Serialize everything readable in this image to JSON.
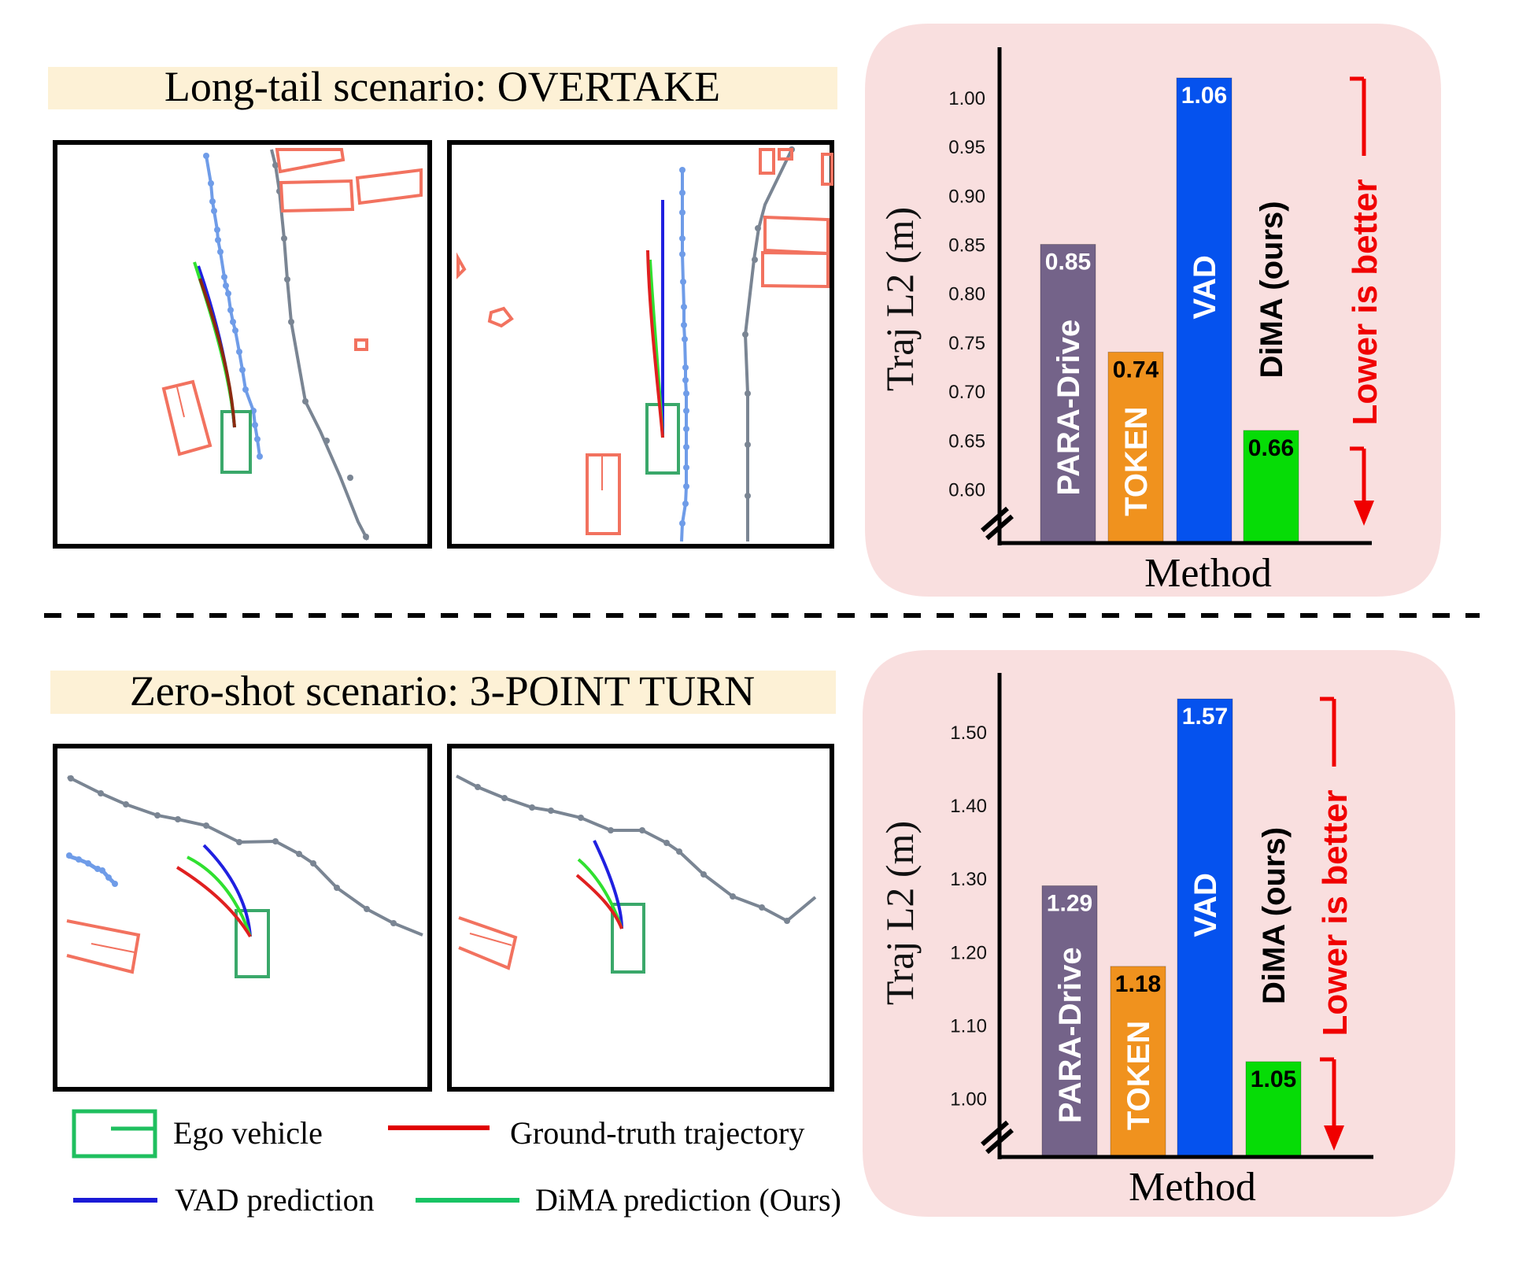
{
  "figure": {
    "scenarios": [
      {
        "title": "Long-tail scenario: OVERTAKE",
        "maps": [
          "VAD prediction view",
          "DiMA prediction view"
        ]
      },
      {
        "title": "Zero-shot scenario: 3-POINT TURN",
        "maps": [
          "VAD prediction view",
          "DiMA prediction view"
        ]
      }
    ],
    "legend": [
      {
        "label": "Ego vehicle",
        "icon": "ego-box-icon",
        "color": "#1fbf5f"
      },
      {
        "label": "Ground-truth trajectory",
        "icon": "red-line-icon",
        "color": "#e00000"
      },
      {
        "label": "VAD prediction",
        "icon": "blue-line-icon",
        "color": "#1a1ad6"
      },
      {
        "label": "DiMA prediction (Ours)",
        "icon": "green-line-icon",
        "color": "#18c464"
      }
    ],
    "colors": {
      "band_bg": "#fdf1d6",
      "chart_bg": "#f9dfdf",
      "ego": "#3aa86a",
      "gt": "#e02020",
      "vad": "#2020e0",
      "dima": "#30e030",
      "lane_blue": "#6f9ce8",
      "lane_gray": "#7a8593",
      "agent": "#f2725f",
      "better": "#f00000"
    }
  },
  "chart_data": [
    {
      "type": "bar",
      "title": "",
      "xlabel": "Method",
      "ylabel": "Traj L2 (m)",
      "categories": [
        "PARA-Drive",
        "TOKEN",
        "VAD",
        "DiMA (ours)"
      ],
      "values": [
        0.85,
        0.74,
        1.06,
        0.66
      ],
      "value_labels": [
        "0.85",
        "0.74",
        "1.06",
        "0.66"
      ],
      "bar_colors": [
        "#746389",
        "#f0921e",
        "#0552ee",
        "#06dc06"
      ],
      "name_colors": [
        "#ffffff",
        "#ffffff",
        "#ffffff",
        "#000000"
      ],
      "value_colors": [
        "#ffffff",
        "#000000",
        "#ffffff",
        "#000000"
      ],
      "yticks": [
        "0.60",
        "0.65",
        "0.70",
        "0.75",
        "0.80",
        "0.85",
        "0.90",
        "0.95",
        "1.00"
      ],
      "ytick_values": [
        0.6,
        0.65,
        0.7,
        0.75,
        0.8,
        0.85,
        0.9,
        0.95,
        1.0
      ],
      "ylim": [
        0.545,
        1.02
      ],
      "axis_break": true,
      "annotation": "Lower is better",
      "grid": false,
      "legend": "none"
    },
    {
      "type": "bar",
      "title": "",
      "xlabel": "Method",
      "ylabel": "Traj L2 (m)",
      "categories": [
        "PARA-Drive",
        "TOKEN",
        "VAD",
        "DiMA (ours)"
      ],
      "values": [
        1.29,
        1.18,
        1.57,
        1.05
      ],
      "value_labels": [
        "1.29",
        "1.18",
        "1.57",
        "1.05"
      ],
      "bar_colors": [
        "#746389",
        "#f0921e",
        "#0552ee",
        "#06dc06"
      ],
      "name_colors": [
        "#ffffff",
        "#ffffff",
        "#ffffff",
        "#000000"
      ],
      "value_colors": [
        "#ffffff",
        "#000000",
        "#ffffff",
        "#000000"
      ],
      "yticks": [
        "1.00",
        "1.10",
        "1.20",
        "1.30",
        "1.40",
        "1.50"
      ],
      "ytick_values": [
        1.0,
        1.1,
        1.2,
        1.3,
        1.4,
        1.5
      ],
      "ylim": [
        0.92,
        1.545
      ],
      "axis_break": true,
      "annotation": "Lower is better",
      "grid": false,
      "legend": "none"
    }
  ]
}
